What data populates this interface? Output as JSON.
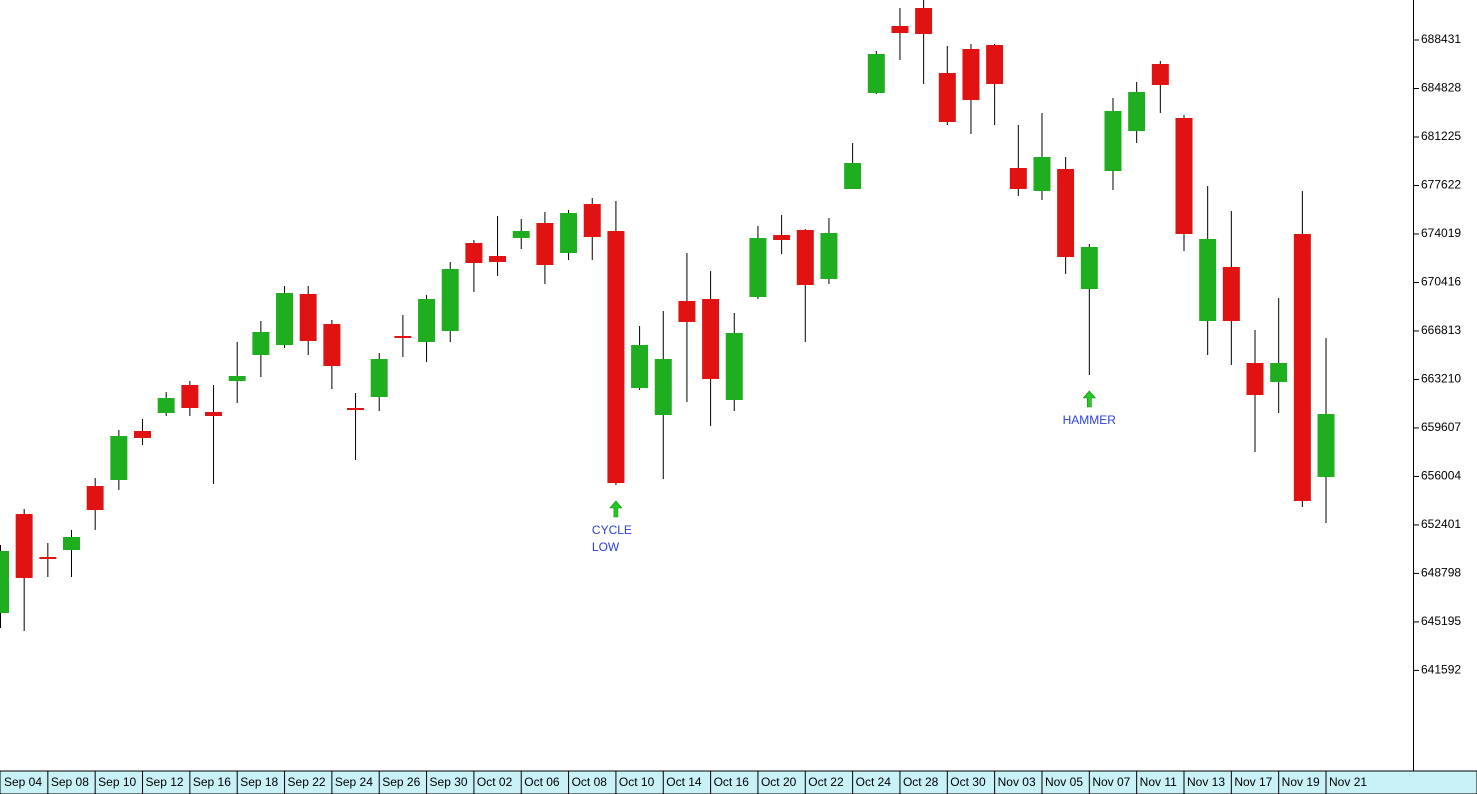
{
  "chart_data": {
    "type": "candlestick",
    "categories": [
      "Sep 04",
      null,
      "Sep 08",
      null,
      "Sep 10",
      null,
      "Sep 12",
      null,
      "Sep 16",
      null,
      "Sep 18",
      null,
      "Sep 22",
      null,
      "Sep 24",
      null,
      "Sep 26",
      null,
      "Sep 30",
      null,
      "Oct 02",
      null,
      "Oct 06",
      null,
      "Oct 08",
      null,
      "Oct 10",
      null,
      "Oct 14",
      null,
      "Oct 16",
      null,
      "Oct 20",
      null,
      "Oct 22",
      null,
      "Oct 24",
      null,
      "Oct 28",
      null,
      "Oct 30",
      null,
      "Nov 03",
      null,
      "Nov 05",
      null,
      "Nov 07",
      null,
      "Nov 11",
      null,
      "Nov 13",
      null,
      "Nov 17",
      null,
      "Nov 19",
      null,
      "Nov 21"
    ],
    "open": [
      645857,
      653213,
      650018,
      650538,
      655293,
      655739,
      659380,
      660717,
      662797,
      660791,
      663095,
      665026,
      665769,
      669559,
      667330,
      661089,
      661906,
      666438,
      665992,
      666810,
      673348,
      672382,
      673720,
      674834,
      672605,
      676246,
      674240,
      662575,
      660568,
      669039,
      669187,
      661683,
      669336,
      673942,
      674314,
      670673,
      677360,
      684493,
      689471,
      690809,
      685979,
      687762,
      688059,
      678921,
      677212,
      678846,
      669930,
      678698,
      681670,
      686648,
      682636,
      667553,
      671565,
      664432,
      663020,
      674017,
      655962
    ],
    "high": [
      650909,
      653584,
      651058,
      652024,
      655888,
      659454,
      660271,
      662277,
      663095,
      662797,
      665992,
      667553,
      670153,
      670153,
      667627,
      662203,
      665175,
      667998,
      669484,
      671936,
      673571,
      675354,
      675131,
      675651,
      675800,
      676692,
      676469,
      667181,
      668296,
      672605,
      671268,
      668147,
      674611,
      675428,
      674388,
      675206,
      680778,
      687614,
      690809,
      691403,
      687985,
      688134,
      688134,
      682115,
      683007,
      679738,
      673274,
      684122,
      685310,
      686871,
      682858,
      677583,
      675726,
      666884,
      669262,
      677212,
      666290
    ],
    "low": [
      644743,
      644520,
      648532,
      648532,
      652024,
      654996,
      658339,
      660494,
      660494,
      655442,
      661460,
      663392,
      665547,
      665026,
      662500,
      657225,
      660866,
      664878,
      664506,
      665992,
      669707,
      670896,
      672902,
      670302,
      672085,
      672085,
      655367,
      662426,
      655813,
      661534,
      659751,
      660866,
      669187,
      672531,
      665992,
      670302,
      677360,
      684419,
      686945,
      685162,
      682115,
      681447,
      682115,
      676840,
      676543,
      671045,
      663540,
      677286,
      680778,
      683007,
      672754,
      665026,
      664283,
      657819,
      660717,
      653733,
      652544
    ],
    "close": [
      650464,
      648458,
      649869,
      651504,
      653510,
      659008,
      658860,
      661832,
      661089,
      660494,
      663466,
      666735,
      669633,
      666067,
      664209,
      660940,
      664729,
      666290,
      669187,
      671416,
      671862,
      671936,
      674240,
      671713,
      675577,
      673794,
      655516,
      665769,
      664729,
      667478,
      663243,
      666661,
      673720,
      673571,
      670227,
      674091,
      679292,
      687391,
      688951,
      688877,
      682338,
      683973,
      685162,
      677360,
      679738,
      672308,
      673051,
      683156,
      684567,
      685087,
      674017,
      673645,
      667553,
      662054,
      664432,
      654179,
      660643
    ],
    "up_color": "#1fae1f",
    "down_color": "#e01212",
    "ylim": [
      634192,
      691403
    ],
    "yticks": [
      688431,
      684828,
      681225,
      677622,
      674019,
      670416,
      666813,
      663210,
      659607,
      656004,
      652401,
      648798,
      645195,
      641592
    ],
    "annotations": [
      {
        "lines": [
          "CYCLE",
          "LOW"
        ],
        "at": "Oct 10"
      },
      {
        "lines": [
          "HAMMER"
        ],
        "at": "Nov 07"
      }
    ]
  }
}
